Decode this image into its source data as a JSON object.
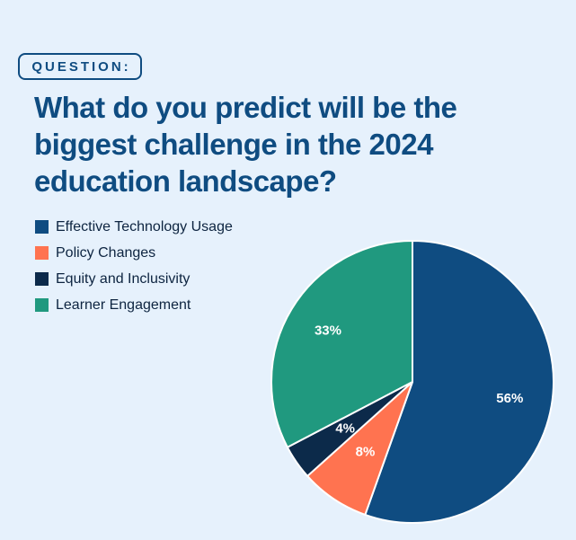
{
  "header": {
    "badge": "QUESTION:",
    "title": "What do you predict will be the biggest challenge in the 2024 education landscape?"
  },
  "chart_data": {
    "type": "pie",
    "title": "What do you predict will be the biggest challenge in the 2024 education landscape?",
    "categories": [
      "Effective Technology Usage",
      "Policy Changes",
      "Equity and Inclusivity",
      "Learner Engagement"
    ],
    "values": [
      56,
      8,
      4,
      33
    ],
    "labels": [
      "56%",
      "8%",
      "4%",
      "33%"
    ],
    "colors": [
      "#0f4c81",
      "#ff7350",
      "#0c2a4a",
      "#20997f"
    ],
    "start_angle_deg": 0,
    "direction": "clockwise",
    "legend": "top-left"
  }
}
